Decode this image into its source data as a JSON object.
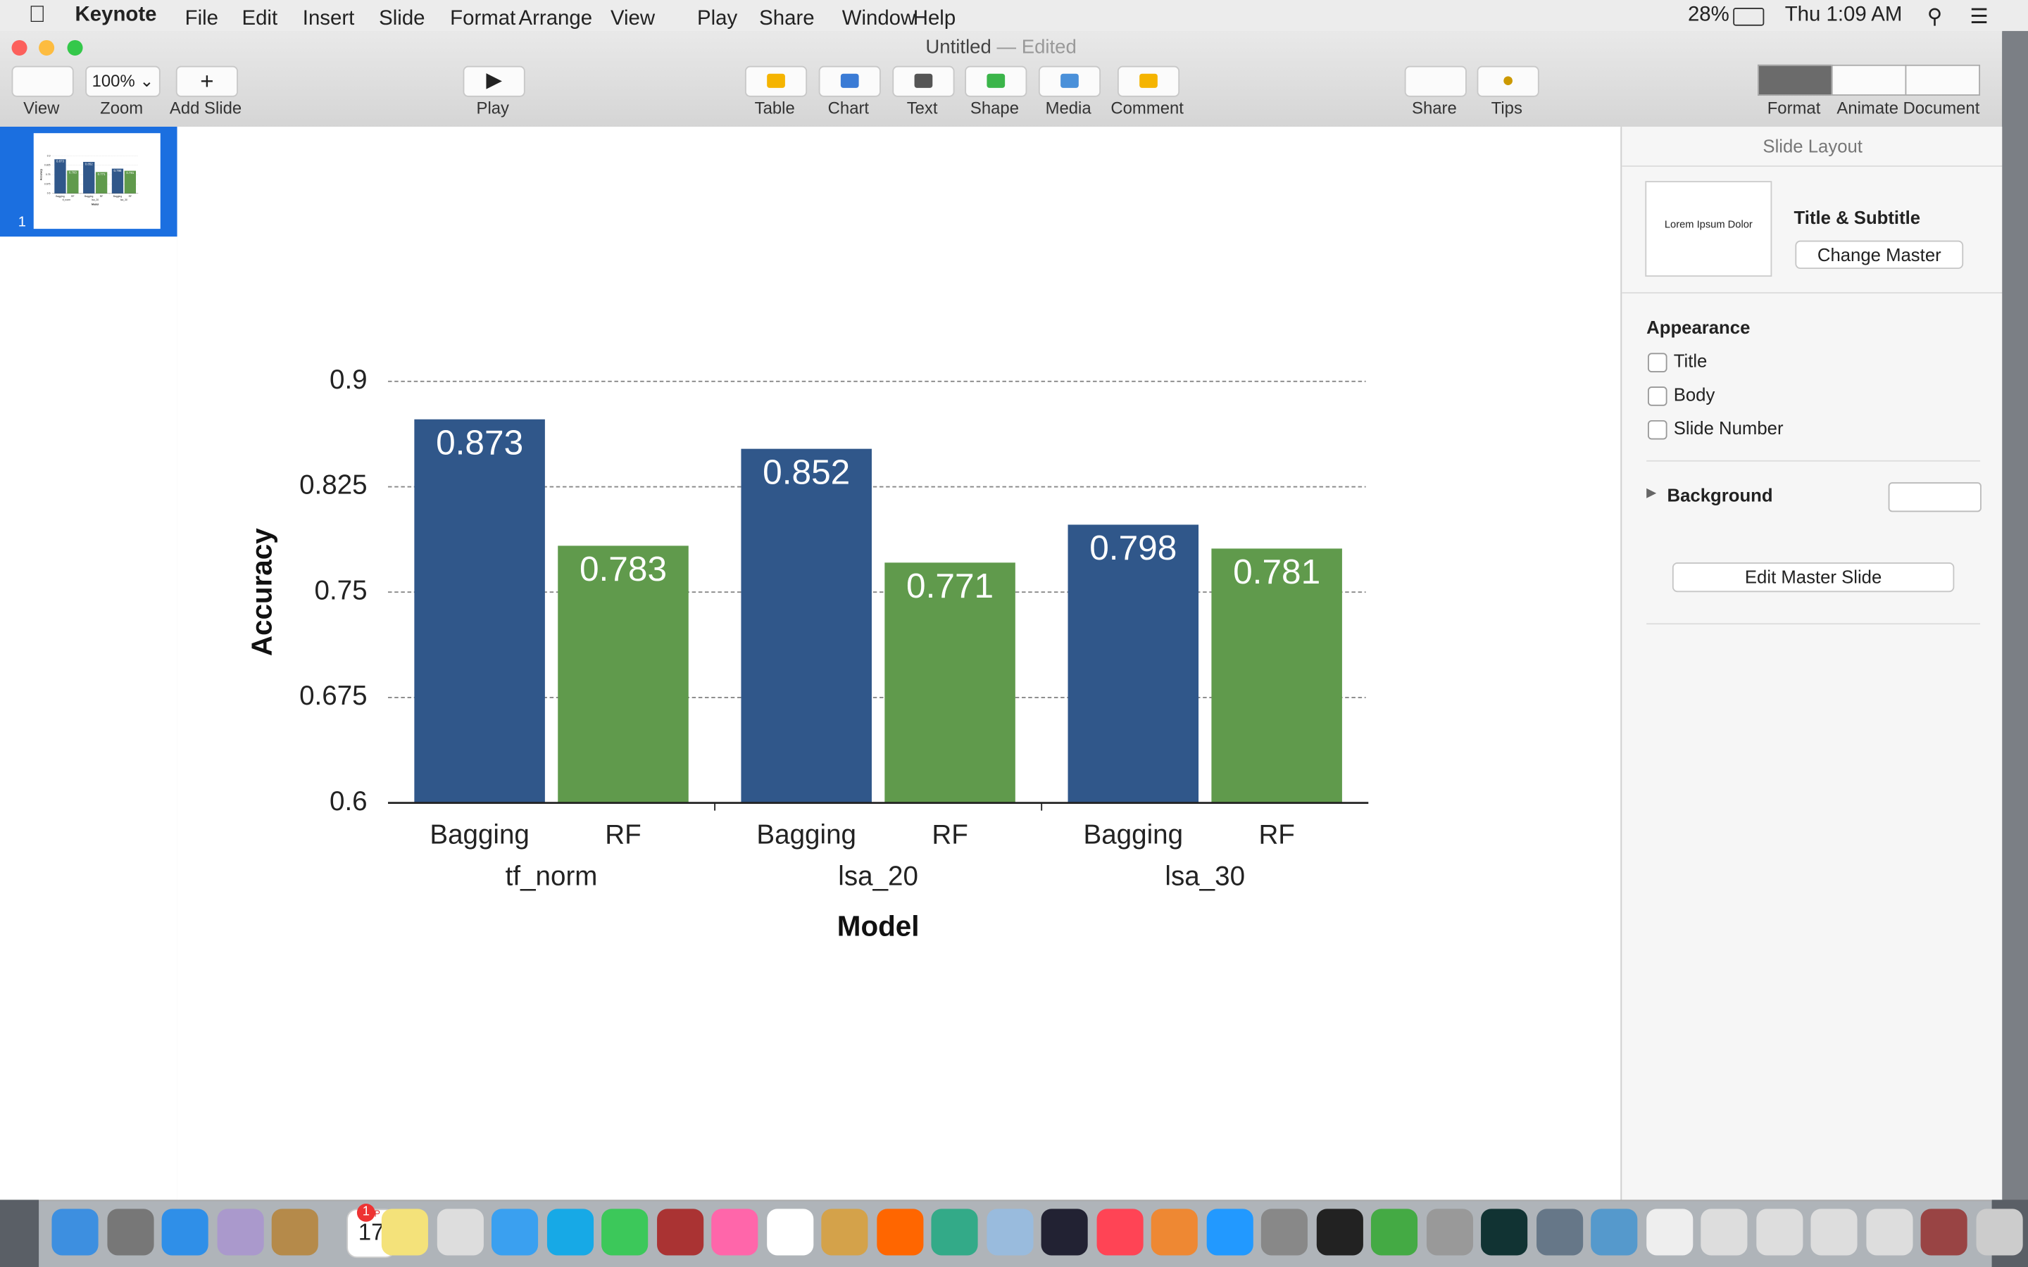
{
  "menu_bar": {
    "app": "Keynote",
    "items": [
      "File",
      "Edit",
      "Insert",
      "Slide",
      "Format",
      "Arrange",
      "View",
      "Play",
      "Share",
      "Window",
      "Help"
    ],
    "battery": "28%",
    "clock": "Thu 1:09 AM"
  },
  "window": {
    "title": "Untitled",
    "separator": "—",
    "status": "Edited"
  },
  "toolbar": {
    "view": "View",
    "zoom": "Zoom",
    "zoom_value": "100%",
    "add_slide": "Add Slide",
    "play": "Play",
    "insert": [
      "Table",
      "Chart",
      "Text",
      "Shape",
      "Media",
      "Comment"
    ],
    "share": "Share",
    "tips": "Tips",
    "inspector_tabs": [
      "Format",
      "Animate",
      "Document"
    ]
  },
  "slides": {
    "numbers": [
      "1"
    ]
  },
  "inspector": {
    "heading": "Slide Layout",
    "thumb_text": "Lorem Ipsum Dolor",
    "layout_name": "Title & Subtitle",
    "change_master": "Change Master",
    "appearance": "Appearance",
    "checkboxes": [
      "Title",
      "Body",
      "Slide Number"
    ],
    "background": "Background",
    "edit_master": "Edit Master Slide"
  },
  "dock": {
    "calendar_month": "SEP",
    "calendar_day": "17",
    "calendar_badge": "1"
  },
  "chart_data": {
    "type": "bar",
    "x_label": "Model",
    "y_label": "Accuracy",
    "categories": [
      "tf_norm",
      "lsa_20",
      "lsa_30"
    ],
    "series": [
      {
        "name": "Bagging",
        "color": "#30578a",
        "values": [
          0.873,
          0.852,
          0.798
        ]
      },
      {
        "name": "RF",
        "color": "#609a4c",
        "values": [
          0.783,
          0.771,
          0.781
        ]
      }
    ],
    "ylim": [
      0.6,
      0.9
    ],
    "yticks": [
      0.6,
      0.675,
      0.75,
      0.825,
      0.9
    ],
    "grid": true
  }
}
